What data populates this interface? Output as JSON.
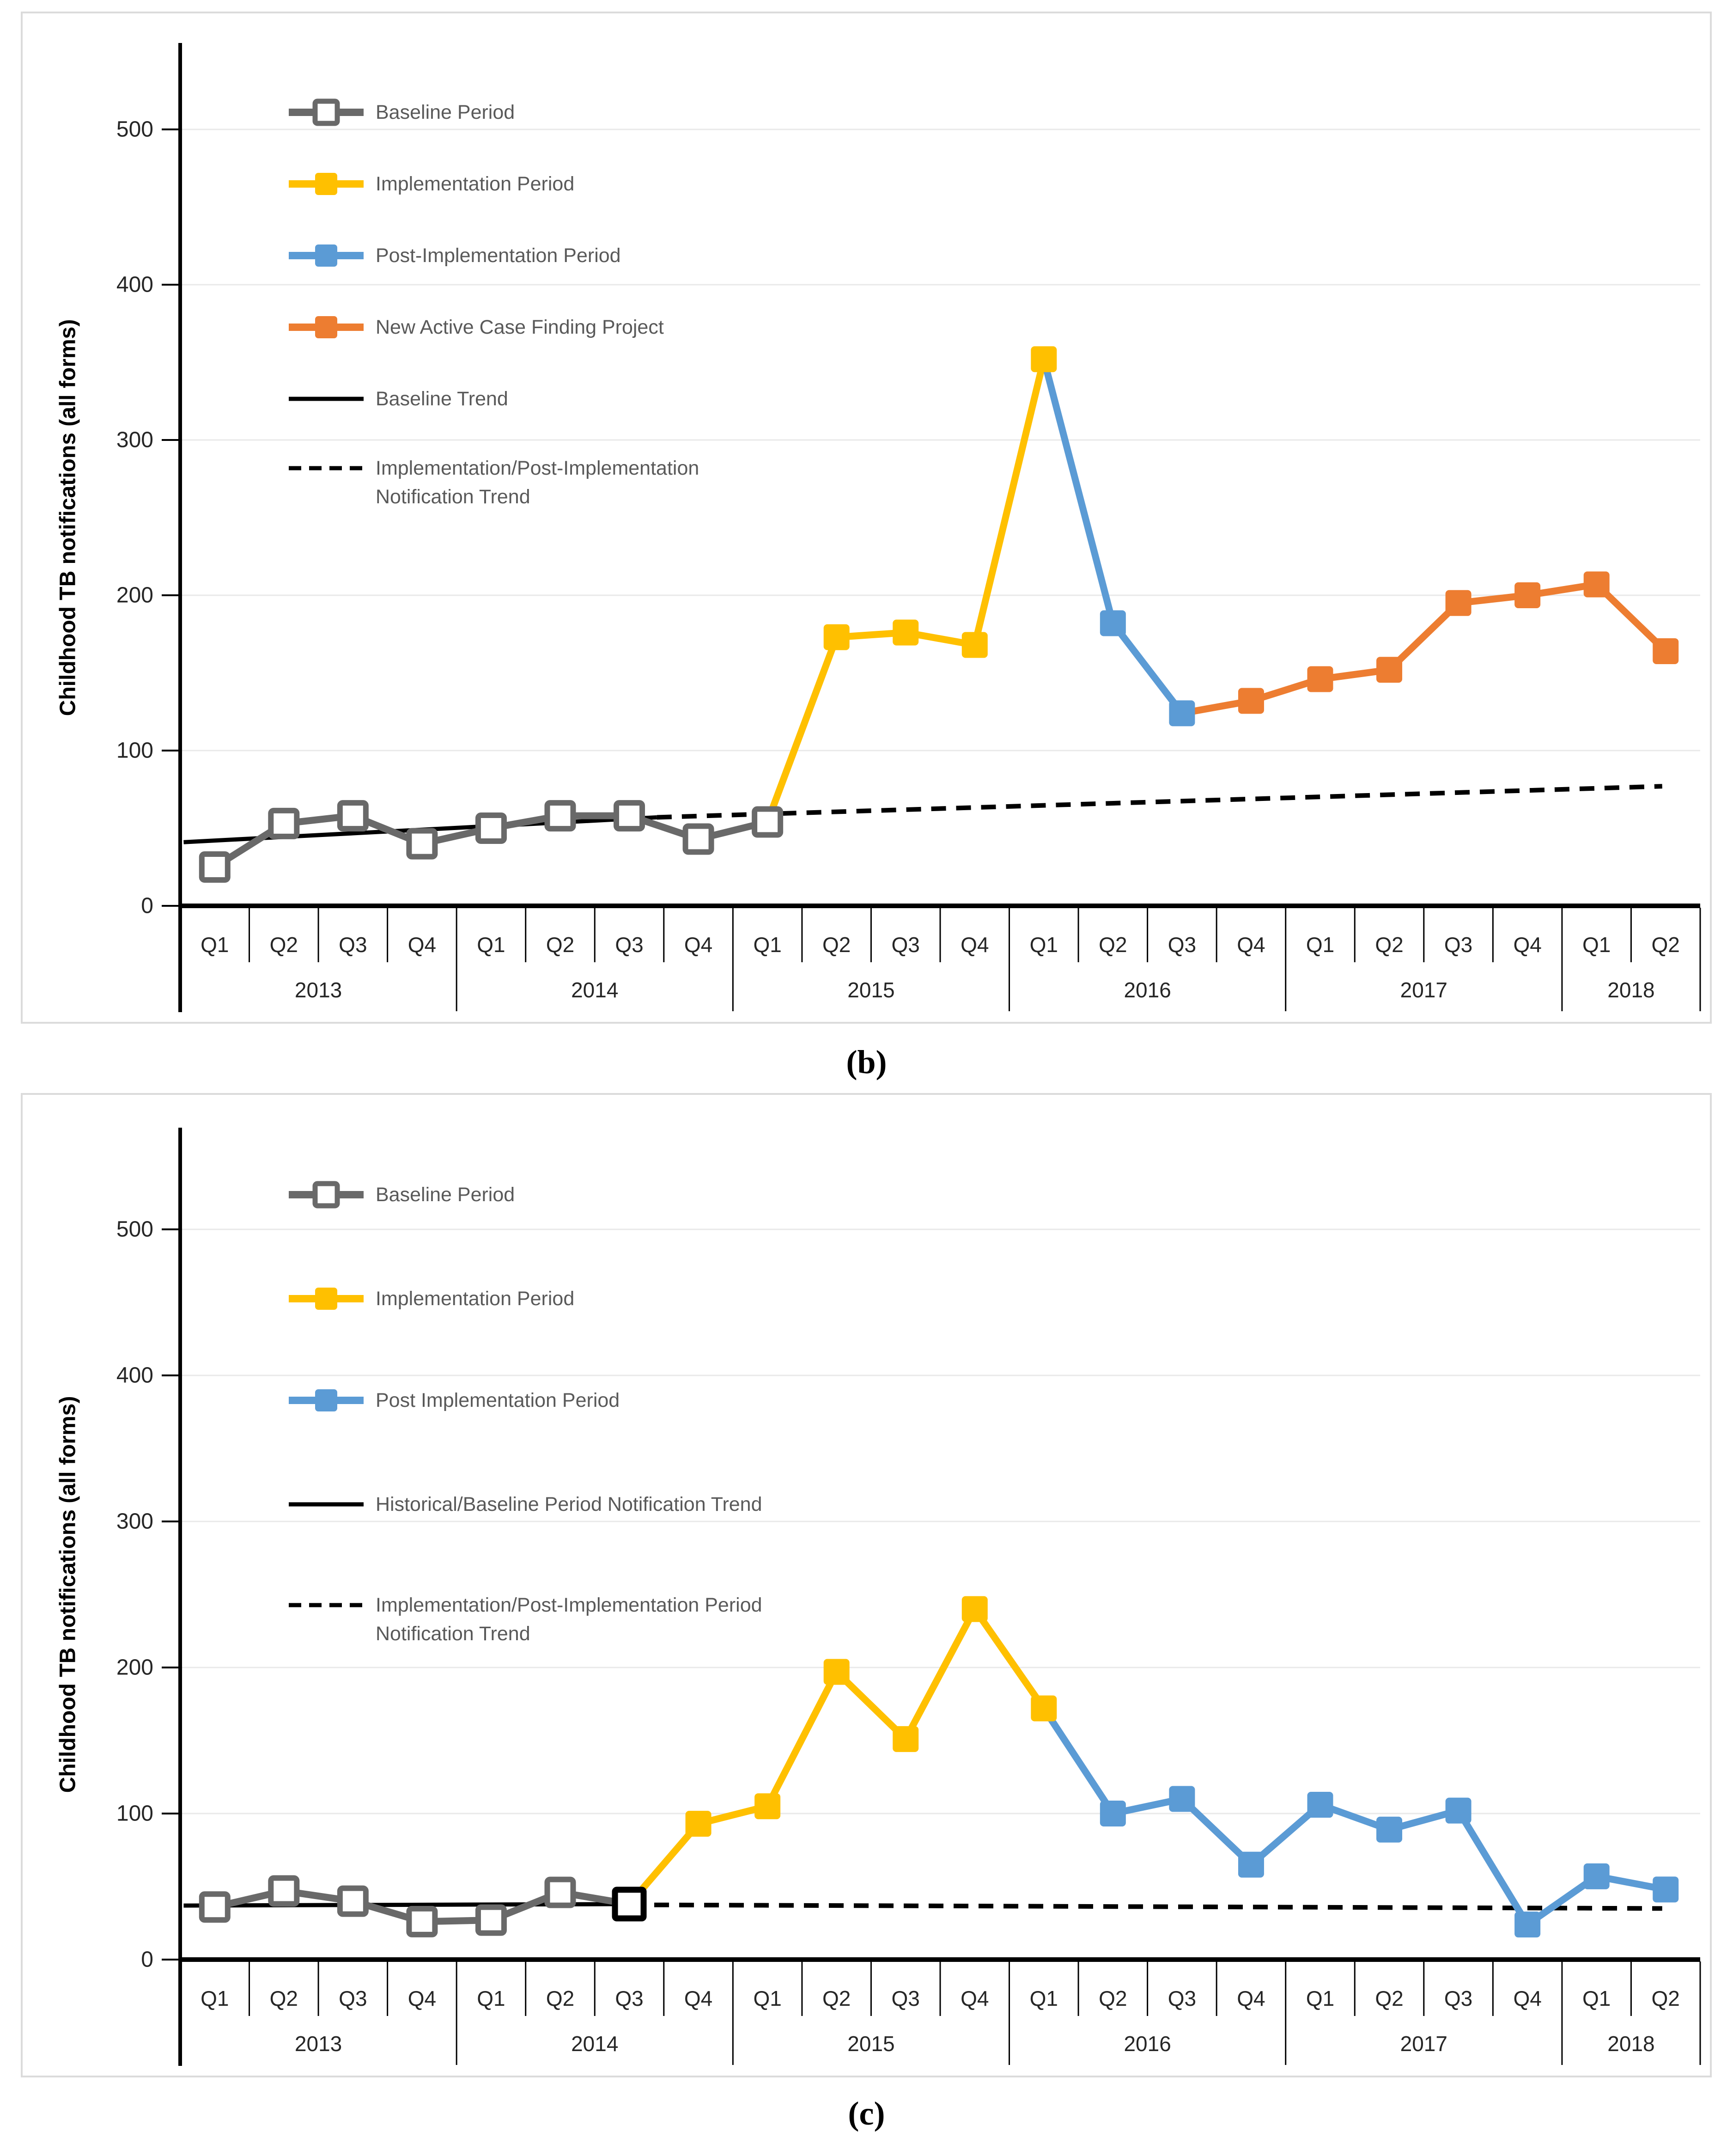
{
  "figure": {
    "background": "#FFFFFF",
    "panel_border_color": "#DBDBDB",
    "axis_color": "#000000",
    "axis_text_color": "#262626",
    "gridline_color": "#E9E9E9",
    "legend_text_color": "#595959"
  },
  "chart_data": [
    {
      "id": "panel-b",
      "type": "line",
      "panel_label": "(b)",
      "ylabel": "Childhood TB notifications (all forms)",
      "ylim": [
        0,
        550
      ],
      "yticks": [
        0,
        100,
        200,
        300,
        400,
        500
      ],
      "grid": "horizontal-only",
      "legend_position": "upper-left-inside",
      "x_quarter_labels": [
        "Q1",
        "Q2",
        "Q3",
        "Q4",
        "Q1",
        "Q2",
        "Q3",
        "Q4",
        "Q1",
        "Q2",
        "Q3",
        "Q4",
        "Q1",
        "Q2",
        "Q3",
        "Q4",
        "Q1",
        "Q2",
        "Q3",
        "Q4",
        "Q1",
        "Q2"
      ],
      "x_year_groups": [
        {
          "label": "2013",
          "start": 0,
          "count": 4
        },
        {
          "label": "2014",
          "start": 4,
          "count": 4
        },
        {
          "label": "2015",
          "start": 8,
          "count": 4
        },
        {
          "label": "2016",
          "start": 12,
          "count": 4
        },
        {
          "label": "2017",
          "start": 16,
          "count": 4
        },
        {
          "label": "2018",
          "start": 20,
          "count": 2
        }
      ],
      "series": [
        {
          "name": "Baseline Period",
          "color": "#696969",
          "marker": "open-square",
          "start_index": 0,
          "values": [
            25,
            53,
            58,
            40,
            50,
            58,
            58,
            43,
            54
          ]
        },
        {
          "name": "Implementation Period",
          "color": "#FFC000",
          "marker": "filled-square",
          "start_index": 8,
          "values": [
            54,
            173,
            176,
            168,
            352
          ]
        },
        {
          "name": "Post-Implementation Period",
          "color": "#5B9BD5",
          "marker": "filled-square",
          "start_index": 12,
          "values": [
            352,
            182,
            124
          ]
        },
        {
          "name": "New Active Case Finding Project",
          "color": "#ED7D31",
          "marker": "filled-square",
          "start_index": 14,
          "values": [
            124,
            132,
            146,
            152,
            195,
            200,
            207,
            164
          ]
        }
      ],
      "trend_lines": [
        {
          "name": "Baseline Trend",
          "style": "solid",
          "color": "#000000",
          "from": {
            "x": -0.45,
            "value": 41
          },
          "to": {
            "x": 6.4,
            "value": 57
          },
          "legend_label_lines": [
            "Baseline Trend"
          ]
        },
        {
          "name": "Implementation/Post-Implementation Notification Trend",
          "style": "dashed",
          "color": "#000000",
          "from": {
            "x": 6.4,
            "value": 57
          },
          "to": {
            "x": 20.95,
            "value": 77
          },
          "legend_label_lines": [
            "Implementation/Post-Implementation",
            "Notification Trend"
          ]
        }
      ]
    },
    {
      "id": "panel-c",
      "type": "line",
      "panel_label": "(c)",
      "ylabel": "Childhood TB notifications (all forms)",
      "ylim": [
        0,
        550
      ],
      "yticks": [
        0,
        100,
        200,
        300,
        400,
        500
      ],
      "grid": "horizontal-only",
      "legend_position": "upper-left-inside",
      "x_quarter_labels": [
        "Q1",
        "Q2",
        "Q3",
        "Q4",
        "Q1",
        "Q2",
        "Q3",
        "Q4",
        "Q1",
        "Q2",
        "Q3",
        "Q4",
        "Q1",
        "Q2",
        "Q3",
        "Q4",
        "Q1",
        "Q2",
        "Q3",
        "Q4",
        "Q1",
        "Q2"
      ],
      "x_year_groups": [
        {
          "label": "2013",
          "start": 0,
          "count": 4
        },
        {
          "label": "2014",
          "start": 4,
          "count": 4
        },
        {
          "label": "2015",
          "start": 8,
          "count": 4
        },
        {
          "label": "2016",
          "start": 12,
          "count": 4
        },
        {
          "label": "2017",
          "start": 16,
          "count": 4
        },
        {
          "label": "2018",
          "start": 20,
          "count": 2
        }
      ],
      "series": [
        {
          "name": "Baseline Period",
          "color": "#696969",
          "marker": "open-square",
          "start_index": 0,
          "values": [
            36,
            47,
            40,
            26,
            27,
            46,
            38
          ]
        },
        {
          "name": "Implementation Period",
          "color": "#FFC000",
          "marker": "filled-square",
          "start_index": 6,
          "values": [
            38,
            93,
            105,
            197,
            151,
            240,
            172
          ]
        },
        {
          "name": "Post Implementation Period",
          "color": "#5B9BD5",
          "marker": "filled-square",
          "start_index": 12,
          "values": [
            172,
            100,
            110,
            65,
            106,
            89,
            102,
            24,
            57,
            48
          ]
        }
      ],
      "junction_marker": {
        "x_index": 6,
        "value": 38,
        "color": "#000000",
        "marker": "open-square"
      },
      "trend_lines": [
        {
          "name": "Historical/Baseline Period Notification Trend",
          "style": "solid",
          "color": "#000000",
          "from": {
            "x": -0.45,
            "value": 37
          },
          "to": {
            "x": 6.0,
            "value": 38
          },
          "legend_label_lines": [
            "Historical/Baseline Period Notification Trend"
          ]
        },
        {
          "name": "Implementation/Post-Implementation Period Notification Trend",
          "style": "dashed",
          "color": "#000000",
          "from": {
            "x": 6.0,
            "value": 37.5
          },
          "to": {
            "x": 20.95,
            "value": 35
          },
          "legend_label_lines": [
            "Implementation/Post-Implementation Period",
            "Notification Trend"
          ]
        }
      ]
    }
  ]
}
